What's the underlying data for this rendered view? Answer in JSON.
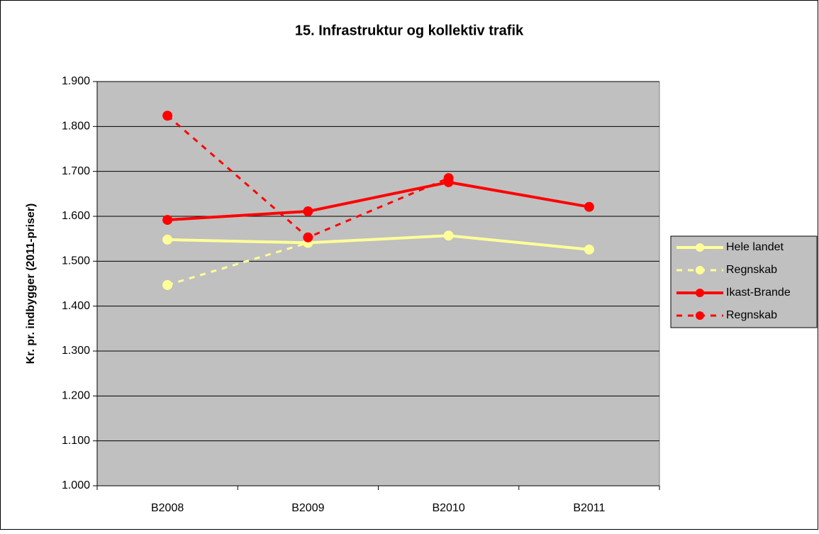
{
  "chart_data": {
    "type": "line",
    "title": "15. Infrastruktur og kollektiv trafik",
    "y_label": "Kr. pr. indbygger (2011-priser)",
    "categories": [
      "B2008",
      "B2009",
      "B2010",
      "B2011"
    ],
    "series": [
      {
        "name": "Hele landet",
        "color": "#ffff99",
        "dashed": false,
        "values": [
          1548,
          1541,
          1557,
          1526
        ]
      },
      {
        "name": "Regnskab",
        "color": "#ffff99",
        "dashed": true,
        "values": [
          1447,
          1541,
          null,
          null
        ]
      },
      {
        "name": "Ikast-Brande",
        "color": "#ff0000",
        "dashed": false,
        "values": [
          1592,
          1611,
          1676,
          1621
        ]
      },
      {
        "name": "Regnskab",
        "color": "#ff0000",
        "dashed": true,
        "values": [
          1824,
          1553,
          1685,
          null
        ]
      }
    ],
    "ylim": [
      1000,
      1900
    ],
    "yticks": [
      {
        "value": 1000,
        "label": "1.000"
      },
      {
        "value": 1100,
        "label": "1.100"
      },
      {
        "value": 1200,
        "label": "1.200"
      },
      {
        "value": 1300,
        "label": "1.300"
      },
      {
        "value": 1400,
        "label": "1.400"
      },
      {
        "value": 1500,
        "label": "1.500"
      },
      {
        "value": 1600,
        "label": "1.600"
      },
      {
        "value": 1700,
        "label": "1.700"
      },
      {
        "value": 1800,
        "label": "1.800"
      },
      {
        "value": 1900,
        "label": "1.900"
      }
    ],
    "grid": true,
    "legend": "right",
    "plot_color": "#c0c0c0"
  }
}
